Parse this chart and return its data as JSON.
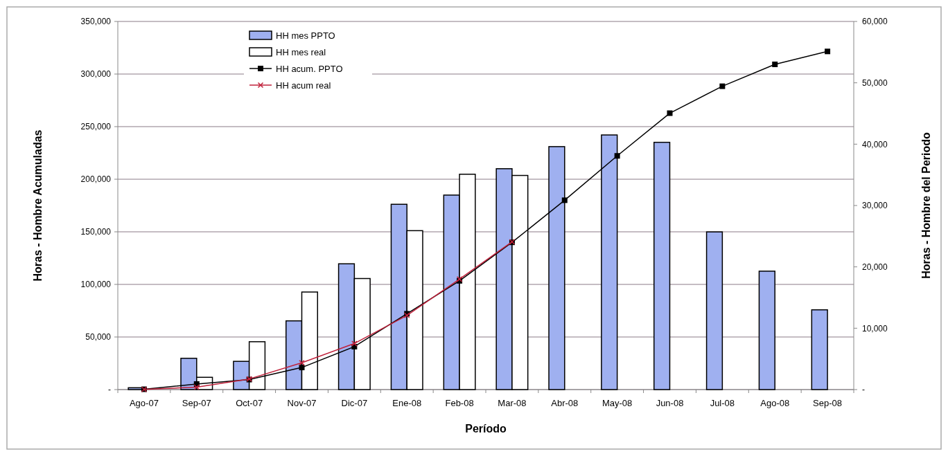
{
  "chart_data": {
    "type": "bar",
    "categories": [
      "Ago-07",
      "Sep-07",
      "Oct-07",
      "Nov-07",
      "Dic-07",
      "Ene-08",
      "Feb-08",
      "Mar-08",
      "Abr-08",
      "May-08",
      "Jun-08",
      "Jul-08",
      "Ago-08",
      "Sep-08"
    ],
    "series": [
      {
        "name": "HH mes PPTO",
        "axis": "y2",
        "color": "#9fb0f0",
        "values": [
          300,
          5100,
          4600,
          11200,
          20500,
          30200,
          31700,
          36000,
          39600,
          41500,
          40300,
          25700,
          19300,
          13000
        ]
      },
      {
        "name": "HH mes real",
        "axis": "y2",
        "color": "#ffffff",
        "values": [
          null,
          2000,
          7800,
          15900,
          18100,
          25900,
          35100,
          34900,
          null,
          null,
          null,
          null,
          null,
          null
        ]
      },
      {
        "name": "HH acum. PPTO",
        "type": "line",
        "color": "#000000",
        "marker": "square",
        "values": [
          300,
          5300,
          9500,
          21000,
          40800,
          72100,
          103400,
          140000,
          180000,
          222200,
          262800,
          288400,
          309200,
          321500
        ]
      },
      {
        "name": "HH acum real",
        "type": "line",
        "color": "#c0203a",
        "marker": "cross",
        "values": [
          200,
          2300,
          10100,
          25500,
          43800,
          70500,
          105000,
          140500,
          null,
          null,
          null,
          null,
          null,
          null
        ]
      }
    ],
    "xlabel": "Período",
    "ylabel": "Horas - Hombre Acumuladas",
    "y2label": "Horas - Hombre del Periodo",
    "ylim": [
      0,
      350000
    ],
    "yticks": [
      {
        "value": 0,
        "label": "-"
      },
      {
        "value": 50000,
        "label": "50,000"
      },
      {
        "value": 100000,
        "label": "100,000"
      },
      {
        "value": 150000,
        "label": "150,000"
      },
      {
        "value": 200000,
        "label": "200,000"
      },
      {
        "value": 250000,
        "label": "250,000"
      },
      {
        "value": 300000,
        "label": "300,000"
      },
      {
        "value": 350000,
        "label": "350,000"
      }
    ],
    "y2lim": [
      0,
      60000
    ],
    "y2ticks": [
      {
        "value": 0,
        "label": "-"
      },
      {
        "value": 10000,
        "label": "10,000"
      },
      {
        "value": 20000,
        "label": "20,000"
      },
      {
        "value": 30000,
        "label": "30,000"
      },
      {
        "value": 40000,
        "label": "40,000"
      },
      {
        "value": 50000,
        "label": "50,000"
      },
      {
        "value": 60000,
        "label": "60,000"
      }
    ],
    "grid": "y",
    "legend": "top left"
  }
}
